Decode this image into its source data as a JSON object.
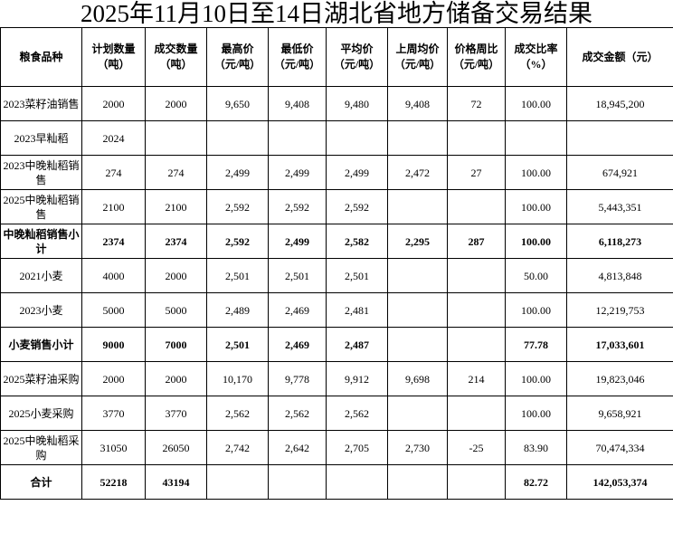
{
  "title": "2025年11月10日至14日湖北省地方储备交易结果",
  "table": {
    "headers": [
      [
        "粮食品种"
      ],
      [
        "计划数量",
        "（吨）"
      ],
      [
        "成交数量",
        "（吨）"
      ],
      [
        "最高价",
        "（元/吨）"
      ],
      [
        "最低价",
        "（元/吨）"
      ],
      [
        "平均价",
        "（元/吨）"
      ],
      [
        "上周均价",
        "（元/吨）"
      ],
      [
        "价格周比",
        "（元/吨）"
      ],
      [
        "成交比率",
        "（%）"
      ],
      [
        "成交金额（元）"
      ]
    ],
    "rows": [
      {
        "name": "2023菜籽油销售",
        "bold": false,
        "cells": [
          "2000",
          "2000",
          "9,650",
          "9,408",
          "9,480",
          "9,408",
          "72",
          "100.00",
          "18,945,200"
        ]
      },
      {
        "name": "2023早籼稻",
        "bold": false,
        "cells": [
          "2024",
          "",
          "",
          "",
          "",
          "",
          "",
          "",
          ""
        ]
      },
      {
        "name": "2023中晚籼稻销售",
        "bold": false,
        "cells": [
          "274",
          "274",
          "2,499",
          "2,499",
          "2,499",
          "2,472",
          "27",
          "100.00",
          "674,921"
        ]
      },
      {
        "name": "2025中晚籼稻销售",
        "bold": false,
        "cells": [
          "2100",
          "2100",
          "2,592",
          "2,592",
          "2,592",
          "",
          "",
          "100.00",
          "5,443,351"
        ]
      },
      {
        "name": "中晚籼稻销售小计",
        "bold": true,
        "cells": [
          "2374",
          "2374",
          "2,592",
          "2,499",
          "2,582",
          "2,295",
          "287",
          "100.00",
          "6,118,273"
        ]
      },
      {
        "name": "2021小麦",
        "bold": false,
        "cells": [
          "4000",
          "2000",
          "2,501",
          "2,501",
          "2,501",
          "",
          "",
          "50.00",
          "4,813,848"
        ]
      },
      {
        "name": "2023小麦",
        "bold": false,
        "cells": [
          "5000",
          "5000",
          "2,489",
          "2,469",
          "2,481",
          "",
          "",
          "100.00",
          "12,219,753"
        ]
      },
      {
        "name": "小麦销售小计",
        "bold": true,
        "cells": [
          "9000",
          "7000",
          "2,501",
          "2,469",
          "2,487",
          "",
          "",
          "77.78",
          "17,033,601"
        ]
      },
      {
        "name": "2025菜籽油采购",
        "bold": false,
        "cells": [
          "2000",
          "2000",
          "10,170",
          "9,778",
          "9,912",
          "9,698",
          "214",
          "100.00",
          "19,823,046"
        ]
      },
      {
        "name": "2025小麦采购",
        "bold": false,
        "cells": [
          "3770",
          "3770",
          "2,562",
          "2,562",
          "2,562",
          "",
          "",
          "100.00",
          "9,658,921"
        ]
      },
      {
        "name": "2025中晚籼稻采购",
        "bold": false,
        "cells": [
          "31050",
          "26050",
          "2,742",
          "2,642",
          "2,705",
          "2,730",
          "-25",
          "83.90",
          "70,474,334"
        ]
      },
      {
        "name": "合计",
        "bold": true,
        "cells": [
          "52218",
          "43194",
          "",
          "",
          "",
          "",
          "",
          "82.72",
          "142,053,374"
        ]
      }
    ]
  }
}
